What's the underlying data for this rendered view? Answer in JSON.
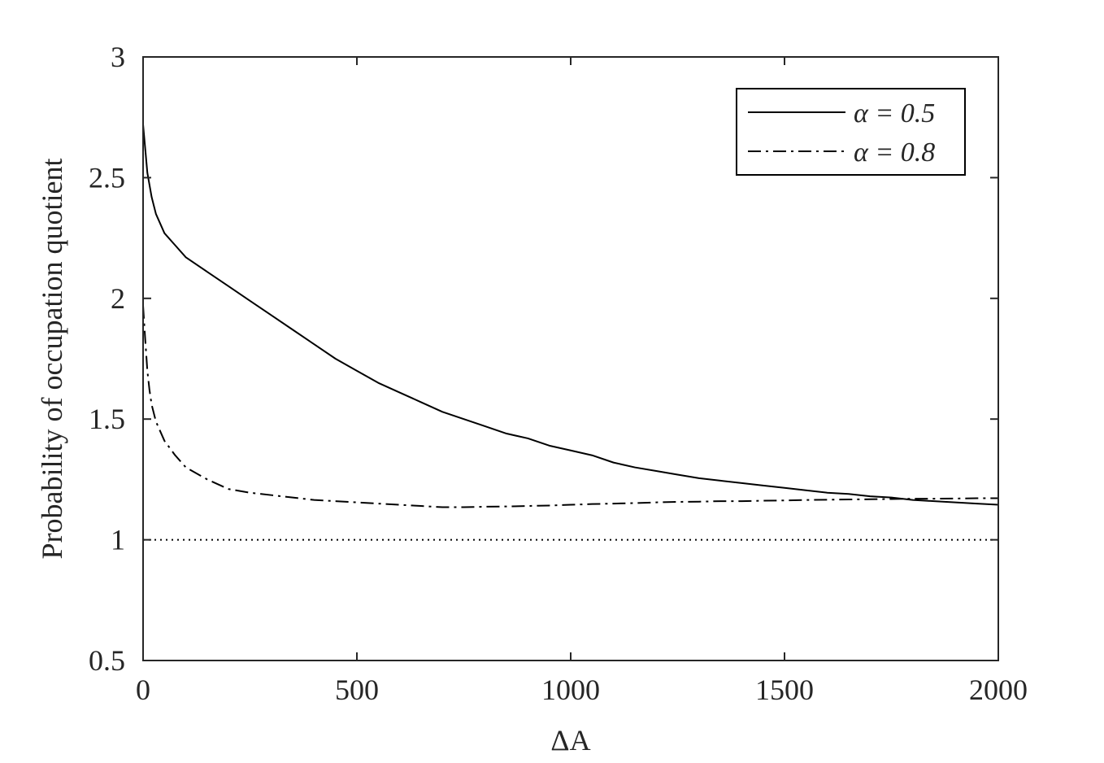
{
  "chart_data": {
    "type": "line",
    "title": "",
    "xlabel": "ΔA",
    "ylabel": "Probability of occupation quotient",
    "xlim": [
      0,
      2000
    ],
    "ylim": [
      0.5,
      3
    ],
    "xticks": [
      0,
      500,
      1000,
      1500,
      2000
    ],
    "xtick_labels": [
      "0",
      "500",
      "1000",
      "1500",
      "2000"
    ],
    "yticks": [
      0.5,
      1,
      1.5,
      2,
      2.5,
      3
    ],
    "ytick_labels": [
      "0.5",
      "1",
      "1.5",
      "2",
      "2.5",
      "3"
    ],
    "grid": false,
    "legend_position": "top-right",
    "series": [
      {
        "name": "α = 0.5",
        "style": "solid",
        "color": "#000000",
        "x": [
          0,
          10,
          20,
          30,
          40,
          50,
          75,
          100,
          150,
          200,
          250,
          300,
          350,
          400,
          450,
          500,
          550,
          600,
          650,
          700,
          750,
          800,
          850,
          900,
          950,
          1000,
          1050,
          1100,
          1150,
          1200,
          1250,
          1300,
          1350,
          1400,
          1450,
          1500,
          1550,
          1600,
          1650,
          1700,
          1750,
          1800,
          1850,
          1900,
          1950,
          2000
        ],
        "y": [
          2.72,
          2.52,
          2.42,
          2.35,
          2.31,
          2.27,
          2.22,
          2.17,
          2.11,
          2.05,
          1.99,
          1.93,
          1.87,
          1.81,
          1.75,
          1.7,
          1.65,
          1.61,
          1.57,
          1.53,
          1.5,
          1.47,
          1.44,
          1.42,
          1.39,
          1.37,
          1.35,
          1.32,
          1.3,
          1.285,
          1.27,
          1.255,
          1.245,
          1.235,
          1.225,
          1.215,
          1.205,
          1.195,
          1.19,
          1.18,
          1.175,
          1.165,
          1.16,
          1.155,
          1.15,
          1.145
        ]
      },
      {
        "name": "α = 0.8",
        "style": "dash-dot",
        "color": "#000000",
        "x": [
          0,
          5,
          10,
          15,
          20,
          30,
          40,
          50,
          75,
          100,
          150,
          200,
          250,
          300,
          350,
          400,
          450,
          500,
          550,
          600,
          650,
          700,
          750,
          800,
          850,
          900,
          950,
          1000,
          1050,
          1100,
          1150,
          1200,
          1250,
          1300,
          1350,
          1400,
          1450,
          1500,
          1550,
          1600,
          1650,
          1700,
          1750,
          1800,
          1850,
          1900,
          1950,
          2000
        ],
        "y": [
          1.97,
          1.83,
          1.7,
          1.62,
          1.56,
          1.49,
          1.45,
          1.41,
          1.35,
          1.3,
          1.25,
          1.21,
          1.195,
          1.185,
          1.175,
          1.165,
          1.16,
          1.155,
          1.15,
          1.145,
          1.14,
          1.135,
          1.135,
          1.137,
          1.138,
          1.14,
          1.142,
          1.145,
          1.148,
          1.15,
          1.152,
          1.155,
          1.157,
          1.158,
          1.16,
          1.16,
          1.162,
          1.163,
          1.165,
          1.166,
          1.167,
          1.168,
          1.169,
          1.17,
          1.17,
          1.171,
          1.172,
          1.172
        ]
      },
      {
        "name": "",
        "style": "dotted",
        "color": "#000000",
        "x": [
          0,
          2000
        ],
        "y": [
          1,
          1
        ]
      }
    ]
  }
}
